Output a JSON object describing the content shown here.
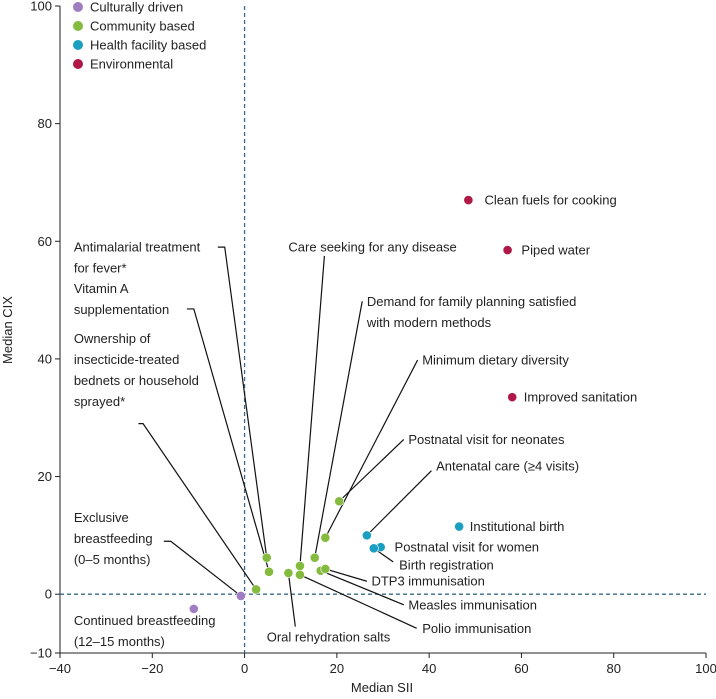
{
  "chart_data": {
    "type": "scatter",
    "xlabel": "Median SII",
    "ylabel": "Median CIX",
    "xlim": [
      -40,
      100
    ],
    "ylim": [
      -10,
      100
    ],
    "x_ticks": [
      "−40",
      "−20",
      "0",
      "20",
      "40",
      "60",
      "80",
      "100"
    ],
    "y_ticks": [
      "−10",
      "0",
      "20",
      "40",
      "60",
      "80",
      "100"
    ],
    "grid": false,
    "reference_lines": [
      {
        "axis": "x",
        "value": 0
      },
      {
        "axis": "y",
        "value": 0
      }
    ],
    "legend_position": "top-left",
    "categories": [
      {
        "name": "Culturally driven",
        "color": "#a07cc0"
      },
      {
        "name": "Community based",
        "color": "#84bb3e"
      },
      {
        "name": "Health facility based",
        "color": "#1a9fc0"
      },
      {
        "name": "Environmental",
        "color": "#b01848"
      }
    ],
    "points": [
      {
        "label": "Clean fuels for cooking",
        "category": 3,
        "x": 48.5,
        "y": 67.0
      },
      {
        "label": "Piped water",
        "category": 3,
        "x": 57.0,
        "y": 58.5
      },
      {
        "label": "Improved sanitation",
        "category": 3,
        "x": 58.0,
        "y": 33.5
      },
      {
        "label": "Institutional birth",
        "category": 2,
        "x": 46.5,
        "y": 11.5
      },
      {
        "label": "Antenatal care (≥4 visits)",
        "category": 2,
        "x": 26.5,
        "y": 10.0
      },
      {
        "label": "Postnatal visit for women",
        "category": 2,
        "x": 29.5,
        "y": 8.0
      },
      {
        "label": "Birth registration",
        "category": 2,
        "x": 28.0,
        "y": 7.8
      },
      {
        "label": "Postnatal visit for neonates",
        "category": 1,
        "x": 20.5,
        "y": 15.8
      },
      {
        "label": "Minimum dietary diversity",
        "category": 1,
        "x": 17.5,
        "y": 9.6
      },
      {
        "label": "Demand for family planning satisfied with modern methods",
        "category": 1,
        "x": 15.2,
        "y": 6.2
      },
      {
        "label": "Care seeking for any disease",
        "category": 1,
        "x": 12.0,
        "y": 4.8
      },
      {
        "label": "Antimalarial treatment for fever*",
        "category": 1,
        "x": 4.8,
        "y": 6.2
      },
      {
        "label": "Vitamin A supplementation",
        "category": 1,
        "x": 5.3,
        "y": 3.8
      },
      {
        "label": "Ownership of insecticide-treated bednets or household sprayed*",
        "category": 1,
        "x": 2.5,
        "y": 0.8
      },
      {
        "label": "Oral rehydration salts",
        "category": 1,
        "x": 9.5,
        "y": 3.6
      },
      {
        "label": "Polio immunisation",
        "category": 1,
        "x": 12.0,
        "y": 3.3
      },
      {
        "label": "Measles immunisation",
        "category": 1,
        "x": 16.5,
        "y": 4.0
      },
      {
        "label": "DTP3 immunisation",
        "category": 1,
        "x": 17.5,
        "y": 4.3
      },
      {
        "label": "Exclusive breastfeeding (0–5 months)",
        "category": 0,
        "x": -0.8,
        "y": -0.3
      },
      {
        "label": "Continued breastfeeding (12–15 months)",
        "category": 0,
        "x": -11.0,
        "y": -2.5
      }
    ],
    "annotations": [
      {
        "point": 0,
        "lines": [
          "Clean fuels for cooking"
        ],
        "tx": 52,
        "ty": 67.0,
        "anchor": "start"
      },
      {
        "point": 1,
        "lines": [
          "Piped water"
        ],
        "tx": 60,
        "ty": 58.5,
        "anchor": "start"
      },
      {
        "point": 2,
        "lines": [
          "Improved sanitation"
        ],
        "tx": 60.5,
        "ty": 33.5,
        "anchor": "start"
      },
      {
        "point": 3,
        "lines": [
          "Institutional birth"
        ],
        "tx": 48.8,
        "ty": 11.5,
        "anchor": "start"
      },
      {
        "point": 4,
        "lines": [
          "Antenatal care (≥4 visits)"
        ],
        "tx": 41.5,
        "ty": 21.8,
        "anchor": "start",
        "leader": [
          [
            40.5,
            21.0
          ],
          [
            26.5,
            10.0
          ]
        ]
      },
      {
        "point": 5,
        "lines": [
          "Postnatal visit for women"
        ],
        "tx": 32.5,
        "ty": 8.0,
        "anchor": "start"
      },
      {
        "point": 6,
        "lines": [
          "Birth registration"
        ],
        "tx": 33.5,
        "ty": 5.0,
        "anchor": "start",
        "leader": [
          [
            32.2,
            5.5
          ],
          [
            28.0,
            7.8
          ]
        ]
      },
      {
        "point": 7,
        "lines": [
          "Postnatal visit for neonates"
        ],
        "tx": 35.5,
        "ty": 26.3,
        "anchor": "start",
        "leader": [
          [
            34.5,
            26.3
          ],
          [
            20.5,
            15.8
          ]
        ]
      },
      {
        "point": 8,
        "lines": [
          "Minimum dietary diversity"
        ],
        "tx": 38.5,
        "ty": 39.8,
        "anchor": "start",
        "leader": [
          [
            37.5,
            39.8
          ],
          [
            17.5,
            9.6
          ]
        ]
      },
      {
        "point": 9,
        "lines": [
          "Demand for family planning satisfied",
          "with modern methods"
        ],
        "tx": 26.5,
        "ty": 49.8,
        "anchor": "start",
        "leader": [
          [
            25.5,
            49.8
          ],
          [
            15.2,
            6.2
          ]
        ]
      },
      {
        "point": 10,
        "lines": [
          "Care seeking for any disease"
        ],
        "tx": 9.5,
        "ty": 59.0,
        "anchor": "start",
        "leader": [
          [
            17.3,
            57.5
          ],
          [
            12.0,
            4.8
          ]
        ]
      },
      {
        "point": 11,
        "lines": [
          "Antimalarial treatment",
          "for fever*"
        ],
        "tx": -37,
        "ty": 59.0,
        "anchor": "start",
        "leader": [
          [
            -5.8,
            59.0
          ],
          [
            -4.3,
            59.0
          ],
          [
            4.8,
            6.2
          ]
        ]
      },
      {
        "point": 12,
        "lines": [
          "Vitamin A",
          "supplementation"
        ],
        "tx": -37,
        "ty": 52.0,
        "anchor": "start",
        "leader": [
          [
            -12.5,
            48.5
          ],
          [
            -11.0,
            48.5
          ],
          [
            5.3,
            3.8
          ]
        ]
      },
      {
        "point": 13,
        "lines": [
          "Ownership of",
          "insecticide-treated",
          "bednets or household",
          "sprayed*"
        ],
        "tx": -37,
        "ty": 43.5,
        "anchor": "start",
        "leader": [
          [
            -23.0,
            29.0
          ],
          [
            -22.0,
            29.0
          ],
          [
            2.5,
            0.8
          ]
        ]
      },
      {
        "point": 14,
        "lines": [
          "Oral rehydration salts"
        ],
        "tx": 4.8,
        "ty": -7.3,
        "anchor": "start",
        "leader": [
          [
            9.5,
            3.6
          ],
          [
            11.0,
            -5.5
          ]
        ]
      },
      {
        "point": 15,
        "lines": [
          "Polio immunisation"
        ],
        "tx": 38.5,
        "ty": -5.8,
        "anchor": "start",
        "leader": [
          [
            12.0,
            3.3
          ],
          [
            37.3,
            -5.8
          ]
        ]
      },
      {
        "point": 16,
        "lines": [
          "Measles immunisation"
        ],
        "tx": 35.5,
        "ty": -1.8,
        "anchor": "start",
        "leader": [
          [
            16.5,
            4.0
          ],
          [
            34.5,
            -1.8
          ]
        ]
      },
      {
        "point": 17,
        "lines": [
          "DTP3 immunisation"
        ],
        "tx": 27.5,
        "ty": 2.2,
        "anchor": "start",
        "leader": [
          [
            17.5,
            4.3
          ],
          [
            26.5,
            2.2
          ]
        ]
      },
      {
        "point": 18,
        "lines": [
          "Exclusive",
          "breastfeeding",
          "(0–5 months)"
        ],
        "tx": -37,
        "ty": 13.0,
        "anchor": "start",
        "leader": [
          [
            -17.5,
            9.0
          ],
          [
            -16.0,
            9.0
          ],
          [
            -0.8,
            -0.3
          ]
        ]
      },
      {
        "point": 19,
        "lines": [
          "Continued breastfeeding",
          "(12–15 months)"
        ],
        "tx": -37,
        "ty": -4.5,
        "anchor": "start"
      }
    ]
  }
}
